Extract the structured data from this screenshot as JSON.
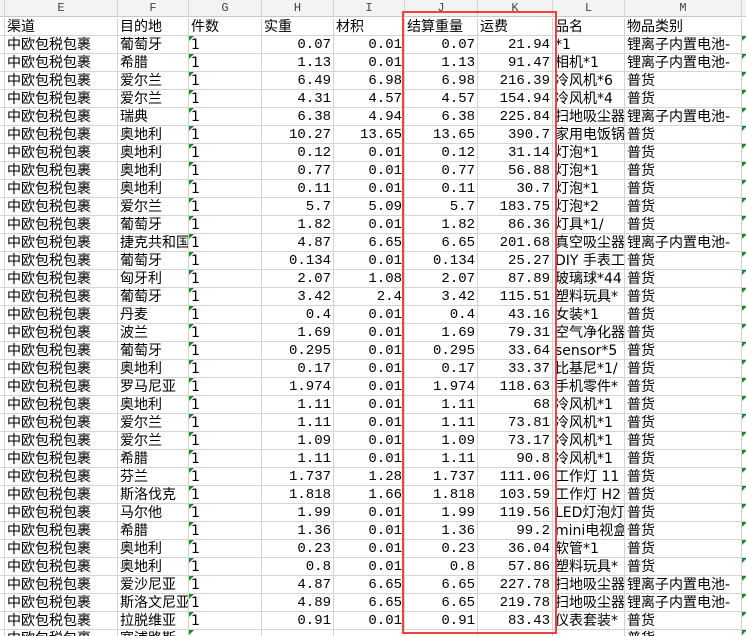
{
  "columns": [
    "",
    "E",
    "F",
    "G",
    "H",
    "I",
    "J",
    "K",
    "L",
    "M",
    ""
  ],
  "header_row": [
    "",
    "渠道",
    "目的地",
    "件数",
    "实重",
    "材积",
    "结算重量",
    "运费",
    "品名",
    "物品类别",
    ""
  ],
  "highlight_color": "#f04040",
  "highlighted_columns": [
    "J",
    "K"
  ],
  "rows": [
    [
      "中欧包税包裹",
      "葡萄牙",
      "1",
      "0.07",
      "0.01",
      "0.07",
      "21.94",
      "*1",
      "锂离子内置电池-"
    ],
    [
      "中欧包税包裹",
      "希腊",
      "1",
      "1.13",
      "0.01",
      "1.13",
      "91.47",
      "相机*1",
      "锂离子内置电池-"
    ],
    [
      "中欧包税包裹",
      "爱尔兰",
      "1",
      "6.49",
      "6.98",
      "6.98",
      "216.39",
      "冷风机*6",
      "普货"
    ],
    [
      "中欧包税包裹",
      "爱尔兰",
      "1",
      "4.31",
      "4.57",
      "4.57",
      "154.94",
      "冷风机*4",
      "普货"
    ],
    [
      "中欧包税包裹",
      "瑞典",
      "1",
      "6.38",
      "4.94",
      "6.38",
      "225.84",
      "扫地吸尘器",
      "锂离子内置电池-"
    ],
    [
      "中欧包税包裹",
      "奥地利",
      "1",
      "10.27",
      "13.65",
      "13.65",
      "390.7",
      "家用电饭锅",
      "普货"
    ],
    [
      "中欧包税包裹",
      "奥地利",
      "1",
      "0.12",
      "0.01",
      "0.12",
      "31.14",
      "灯泡*1",
      "普货"
    ],
    [
      "中欧包税包裹",
      "奥地利",
      "1",
      "0.77",
      "0.01",
      "0.77",
      "56.88",
      "灯泡*1",
      "普货"
    ],
    [
      "中欧包税包裹",
      "奥地利",
      "1",
      "0.11",
      "0.01",
      "0.11",
      "30.7",
      "灯泡*1",
      "普货"
    ],
    [
      "中欧包税包裹",
      "爱尔兰",
      "1",
      "5.7",
      "5.09",
      "5.7",
      "183.75",
      "灯泡*2",
      "普货"
    ],
    [
      "中欧包税包裹",
      "葡萄牙",
      "1",
      "1.82",
      "0.01",
      "1.82",
      "86.36",
      "灯具*1/",
      "普货"
    ],
    [
      "中欧包税包裹",
      "捷克共和国",
      "1",
      "4.87",
      "6.65",
      "6.65",
      "201.68",
      "真空吸尘器",
      "锂离子内置电池-"
    ],
    [
      "中欧包税包裹",
      "葡萄牙",
      "1",
      "0.134",
      "0.01",
      "0.134",
      "25.27",
      "DIY 手表工",
      "普货"
    ],
    [
      "中欧包税包裹",
      "匈牙利",
      "1",
      "2.07",
      "1.08",
      "2.07",
      "87.89",
      "玻璃球*44",
      "普货"
    ],
    [
      "中欧包税包裹",
      "葡萄牙",
      "1",
      "3.42",
      "2.4",
      "3.42",
      "115.51",
      "塑料玩具*",
      "普货"
    ],
    [
      "中欧包税包裹",
      "丹麦",
      "1",
      "0.4",
      "0.01",
      "0.4",
      "43.16",
      "女装*1",
      "普货"
    ],
    [
      "中欧包税包裹",
      "波兰",
      "1",
      "1.69",
      "0.01",
      "1.69",
      "79.31",
      "空气净化器",
      "普货"
    ],
    [
      "中欧包税包裹",
      "葡萄牙",
      "1",
      "0.295",
      "0.01",
      "0.295",
      "33.64",
      "sensor*5",
      "普货"
    ],
    [
      "中欧包税包裹",
      "奥地利",
      "1",
      "0.17",
      "0.01",
      "0.17",
      "33.37",
      "比基尼*1/",
      "普货"
    ],
    [
      "中欧包税包裹",
      "罗马尼亚",
      "1",
      "1.974",
      "0.01",
      "1.974",
      "118.63",
      "手机零件*",
      "普货"
    ],
    [
      "中欧包税包裹",
      "奥地利",
      "1",
      "1.11",
      "0.01",
      "1.11",
      "68",
      "冷风机*1",
      "普货"
    ],
    [
      "中欧包税包裹",
      "爱尔兰",
      "1",
      "1.11",
      "0.01",
      "1.11",
      "73.81",
      "冷风机*1",
      "普货"
    ],
    [
      "中欧包税包裹",
      "爱尔兰",
      "1",
      "1.09",
      "0.01",
      "1.09",
      "73.17",
      "冷风机*1",
      "普货"
    ],
    [
      "中欧包税包裹",
      "希腊",
      "1",
      "1.11",
      "0.01",
      "1.11",
      "90.8",
      "冷风机*1",
      "普货"
    ],
    [
      "中欧包税包裹",
      "芬兰",
      "1",
      "1.737",
      "1.28",
      "1.737",
      "111.06",
      "工作灯 11",
      "普货"
    ],
    [
      "中欧包税包裹",
      "斯洛伐克",
      "1",
      "1.818",
      "1.66",
      "1.818",
      "103.59",
      "工作灯 H2",
      "普货"
    ],
    [
      "中欧包税包裹",
      "马尔他",
      "1",
      "1.99",
      "0.01",
      "1.99",
      "119.56",
      "LED灯泡灯",
      "普货"
    ],
    [
      "中欧包税包裹",
      "希腊",
      "1",
      "1.36",
      "0.01",
      "1.36",
      "99.2",
      "mini电视盒",
      "普货"
    ],
    [
      "中欧包税包裹",
      "奥地利",
      "1",
      "0.23",
      "0.01",
      "0.23",
      "36.04",
      "软管*1",
      "普货"
    ],
    [
      "中欧包税包裹",
      "奥地利",
      "1",
      "0.8",
      "0.01",
      "0.8",
      "57.86",
      "塑料玩具*",
      "普货"
    ],
    [
      "中欧包税包裹",
      "爱沙尼亚",
      "1",
      "4.87",
      "6.65",
      "6.65",
      "227.78",
      "扫地吸尘器",
      "锂离子内置电池-"
    ],
    [
      "中欧包税包裹",
      "斯洛文尼亚",
      "1",
      "4.89",
      "6.65",
      "6.65",
      "219.78",
      "扫地吸尘器",
      "锂离子内置电池-"
    ],
    [
      "中欧包税包裹",
      "拉脱维亚",
      "1",
      "0.91",
      "0.01",
      "0.91",
      "83.43",
      "仪表套装*",
      "普货"
    ],
    [
      "中欧包税包裹",
      "塞浦路斯",
      "",
      "",
      "",
      "",
      "",
      "",
      "普货"
    ]
  ]
}
